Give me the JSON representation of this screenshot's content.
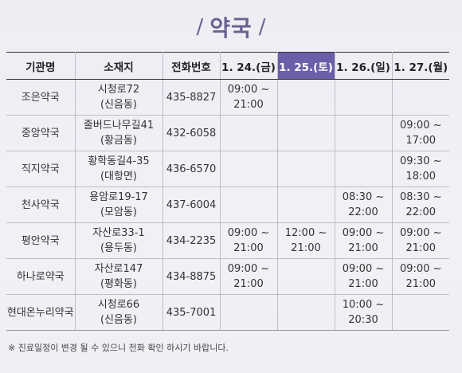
{
  "title": {
    "slash_left": "/",
    "text": "약국",
    "slash_right": "/"
  },
  "table": {
    "headers": [
      "기관명",
      "소재지",
      "전화번호",
      "1. 24.(금)",
      "1. 25.(토)",
      "1. 26.(일)",
      "1. 27.(월)"
    ],
    "highlight_color": "#6a5fa8",
    "rows": [
      {
        "name": "조은약국",
        "address": [
          "시청로72",
          "(신음동)"
        ],
        "phone": "435-8827",
        "days": [
          [
            "09:00 ~",
            "21:00"
          ],
          [
            "",
            ""
          ],
          [
            "",
            ""
          ],
          [
            "",
            ""
          ]
        ]
      },
      {
        "name": "중앙약국",
        "address": [
          "줄버드나무길41",
          "(황금동)"
        ],
        "phone": "432-6058",
        "days": [
          [
            "",
            ""
          ],
          [
            "",
            ""
          ],
          [
            "",
            ""
          ],
          [
            "09:00 ~",
            "17:00"
          ]
        ]
      },
      {
        "name": "직지약국",
        "address": [
          "황학동길4-35",
          "(대항면)"
        ],
        "phone": "436-6570",
        "days": [
          [
            "",
            ""
          ],
          [
            "",
            ""
          ],
          [
            "",
            ""
          ],
          [
            "09:30 ~",
            "18:00"
          ]
        ]
      },
      {
        "name": "천사약국",
        "address": [
          "용암로19-17",
          "(모암동)"
        ],
        "phone": "437-6004",
        "days": [
          [
            "",
            ""
          ],
          [
            "",
            ""
          ],
          [
            "08:30 ~",
            "22:00"
          ],
          [
            "08:30 ~",
            "22:00"
          ]
        ]
      },
      {
        "name": "평안약국",
        "address": [
          "자산로33-1",
          "(용두동)"
        ],
        "phone": "434-2235",
        "days": [
          [
            "09:00 ~",
            "21:00"
          ],
          [
            "12:00 ~",
            "21:00"
          ],
          [
            "09:00 ~",
            "21:00"
          ],
          [
            "09:00 ~",
            "21:00"
          ]
        ]
      },
      {
        "name": "하나로약국",
        "address": [
          "자산로147",
          "(평화동)"
        ],
        "phone": "434-8875",
        "days": [
          [
            "09:00 ~",
            "21:00"
          ],
          [
            "",
            ""
          ],
          [
            "09:00 ~",
            "21:00"
          ],
          [
            "09:00 ~",
            "21:00"
          ]
        ]
      },
      {
        "name": "현대온누리약국",
        "address": [
          "시청로66",
          "(신음동)"
        ],
        "phone": "435-7001",
        "days": [
          [
            "",
            ""
          ],
          [
            "",
            ""
          ],
          [
            "10:00 ~",
            "20:30"
          ],
          [
            "",
            ""
          ]
        ]
      }
    ]
  },
  "note": "※ 진료일정이 변경 될 수 있으니 전화 확인 하시기 바랍니다."
}
